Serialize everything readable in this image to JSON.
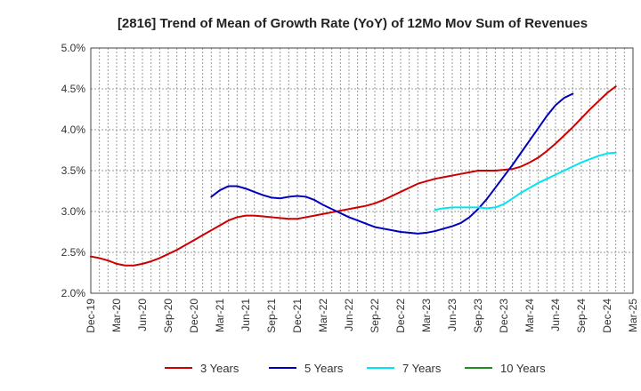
{
  "chart_data": {
    "type": "line",
    "title": "[2816]  Trend of Mean of Growth Rate (YoY) of 12Mo Mov Sum of Revenues",
    "xlabel": "",
    "ylabel": "",
    "grid": true,
    "legend_position": "bottom",
    "x_ticks": [
      "Dec-19",
      "Mar-20",
      "Jun-20",
      "Sep-20",
      "Dec-20",
      "Mar-21",
      "Jun-21",
      "Sep-21",
      "Dec-21",
      "Mar-22",
      "Jun-22",
      "Sep-22",
      "Dec-22",
      "Mar-23",
      "Jun-23",
      "Sep-23",
      "Dec-23",
      "Mar-24",
      "Jun-24",
      "Sep-24",
      "Dec-24",
      "Mar-25"
    ],
    "y_ticks": [
      "2.0%",
      "2.5%",
      "3.0%",
      "3.5%",
      "4.0%",
      "4.5%",
      "5.0%"
    ],
    "ylim": [
      2.0,
      5.0
    ],
    "series": [
      {
        "name": "3 Years",
        "color": "#cc0000",
        "start_month_index": 0,
        "values": [
          2.45,
          2.43,
          2.4,
          2.36,
          2.34,
          2.34,
          2.36,
          2.39,
          2.43,
          2.48,
          2.53,
          2.59,
          2.65,
          2.71,
          2.77,
          2.83,
          2.89,
          2.93,
          2.95,
          2.95,
          2.94,
          2.93,
          2.92,
          2.91,
          2.91,
          2.93,
          2.95,
          2.97,
          2.99,
          3.01,
          3.03,
          3.05,
          3.07,
          3.1,
          3.14,
          3.19,
          3.24,
          3.29,
          3.34,
          3.37,
          3.4,
          3.42,
          3.44,
          3.46,
          3.48,
          3.5,
          3.5,
          3.5,
          3.51,
          3.52,
          3.55,
          3.6,
          3.66,
          3.74,
          3.83,
          3.93,
          4.03,
          4.14,
          4.25,
          4.35,
          4.45,
          4.53
        ]
      },
      {
        "name": "5 Years",
        "color": "#0000bb",
        "start_month_index": 14,
        "values": [
          3.18,
          3.26,
          3.31,
          3.31,
          3.28,
          3.24,
          3.2,
          3.17,
          3.16,
          3.18,
          3.19,
          3.18,
          3.14,
          3.08,
          3.03,
          2.98,
          2.93,
          2.89,
          2.85,
          2.81,
          2.79,
          2.77,
          2.75,
          2.74,
          2.73,
          2.74,
          2.76,
          2.79,
          2.82,
          2.86,
          2.93,
          3.03,
          3.15,
          3.29,
          3.43,
          3.57,
          3.72,
          3.87,
          4.02,
          4.17,
          4.3,
          4.39,
          4.44
        ]
      },
      {
        "name": "7 Years",
        "color": "#00e5ee",
        "start_month_index": 40,
        "values": [
          3.02,
          3.04,
          3.05,
          3.05,
          3.05,
          3.05,
          3.04,
          3.05,
          3.09,
          3.16,
          3.23,
          3.29,
          3.35,
          3.4,
          3.45,
          3.5,
          3.55,
          3.6,
          3.64,
          3.68,
          3.71,
          3.72
        ]
      },
      {
        "name": "10 Years",
        "color": "#228b22",
        "start_month_index": 0,
        "values": []
      }
    ]
  }
}
